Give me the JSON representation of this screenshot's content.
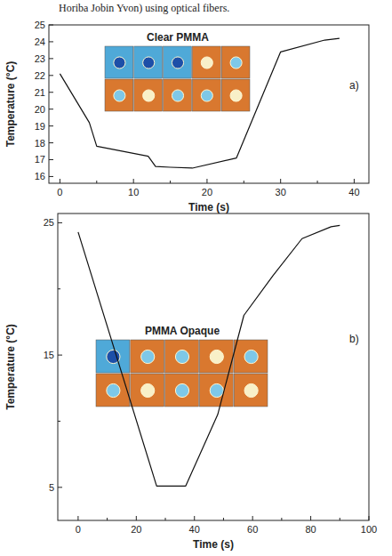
{
  "caption_fragment": "Horiba Jobin Yvon) using optical fibers.",
  "chart_data": [
    {
      "type": "line",
      "title": "Clear PMMA",
      "annotation": "a)",
      "x_label": "Time (s)",
      "y_label": "Temperature (°C)",
      "x": [
        0,
        4,
        5,
        12,
        13,
        15,
        18,
        24,
        30,
        36,
        38
      ],
      "values": [
        22.1,
        19.2,
        17.8,
        17.2,
        16.6,
        16.55,
        16.5,
        17.1,
        23.4,
        24.1,
        24.2
      ],
      "color": "#111111",
      "xlim": [
        -1.5,
        42
      ],
      "xticks": [
        0,
        10,
        20,
        30,
        40
      ],
      "ylim": [
        15.6,
        25
      ],
      "yticks": [
        16,
        17,
        18,
        19,
        20,
        21,
        22,
        23,
        24,
        25
      ],
      "grid": false
    },
    {
      "type": "line",
      "title": "PMMA Opaque",
      "annotation": "b)",
      "x_label": "Time (s)",
      "y_label": "Temperature (°C)",
      "x": [
        0,
        27,
        37,
        48,
        57,
        67,
        77,
        87,
        90
      ],
      "values": [
        24.3,
        5.1,
        5.1,
        10.5,
        18,
        21,
        23.8,
        24.7,
        24.8
      ],
      "color": "#111111",
      "xlim": [
        -7,
        100
      ],
      "xticks": [
        0,
        20,
        40,
        60,
        80,
        100
      ],
      "ylim": [
        2.5,
        25.7
      ],
      "yticks": [
        5,
        15,
        25
      ],
      "grid": false
    }
  ]
}
